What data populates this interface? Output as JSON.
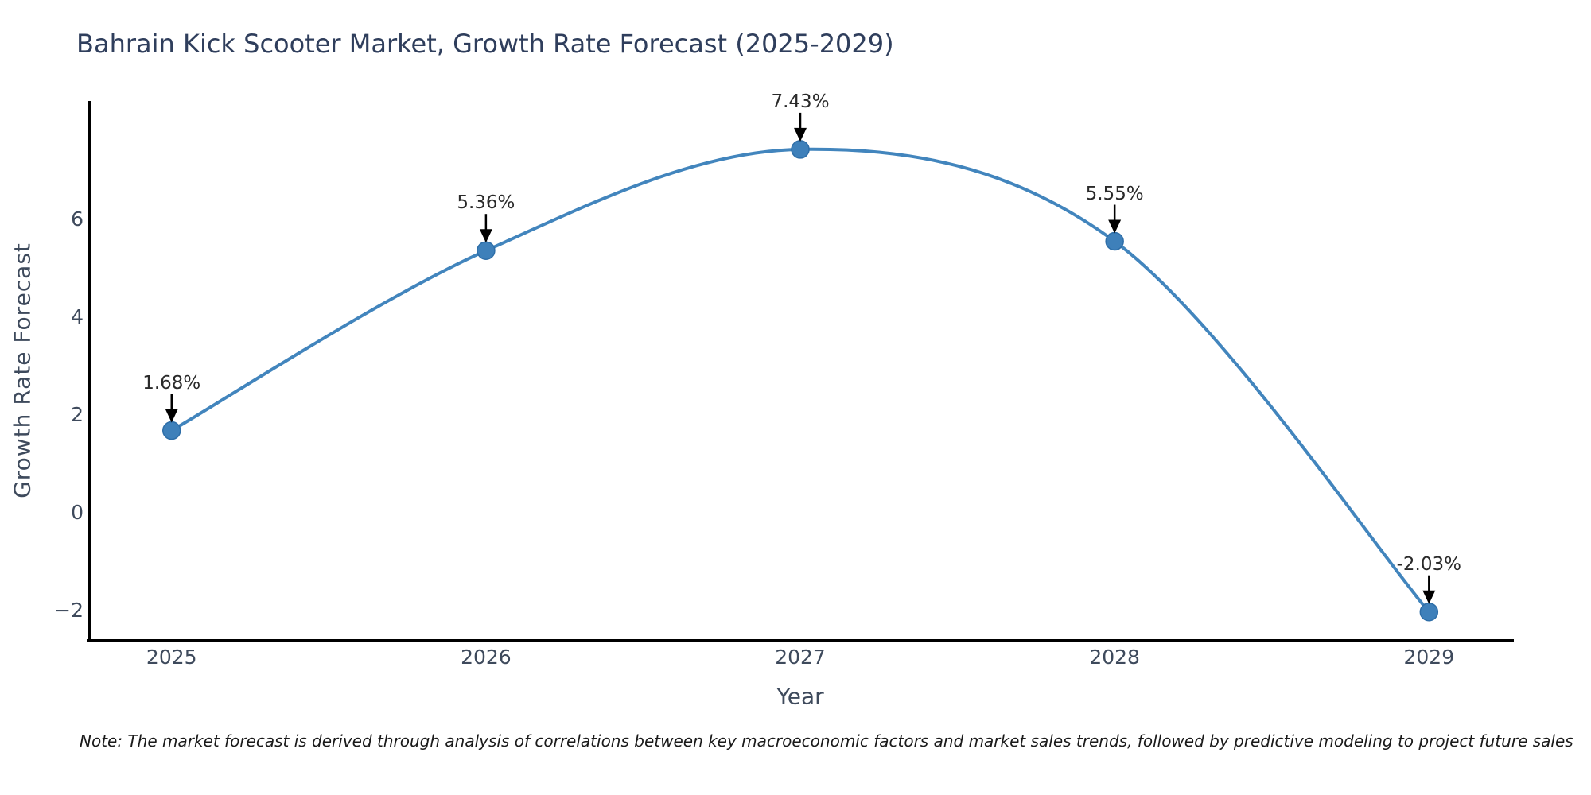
{
  "page": {
    "note": "Note: The market forecast is derived through analysis of correlations between key macroeconomic factors and market sales trends, followed by predictive modeling to project future sales"
  },
  "chart_data": {
    "type": "line",
    "title": "Bahrain Kick Scooter Market, Growth Rate Forecast (2025-2029)",
    "xlabel": "Year",
    "ylabel": "Growth Rate Forecast",
    "x": [
      2025,
      2026,
      2027,
      2028,
      2029
    ],
    "values": [
      1.68,
      5.36,
      7.43,
      5.55,
      -2.03
    ],
    "point_labels": [
      "1.68%",
      "5.36%",
      "7.43%",
      "5.55%",
      "-2.03%"
    ],
    "x_tick_labels": [
      "2025",
      "2026",
      "2027",
      "2028",
      "2029"
    ],
    "y_ticks": [
      6,
      4,
      2,
      0,
      -2
    ],
    "y_tick_labels": [
      "6",
      "4",
      "2",
      "0",
      "−2"
    ],
    "xlim": [
      2024.74,
      2029.27
    ],
    "ylim": [
      -2.62,
      8.42
    ],
    "grid": false,
    "legend": false,
    "smooth_curve": true,
    "colors": {
      "line": "#4285bd",
      "marker_fill": "#3e80ba",
      "marker_edge": "#2e6ea8",
      "axis_spine": "#000000",
      "annotation_arrow": "#000000",
      "title_text": "#2f3e5c",
      "tick_text": "#3e4a5c"
    }
  }
}
